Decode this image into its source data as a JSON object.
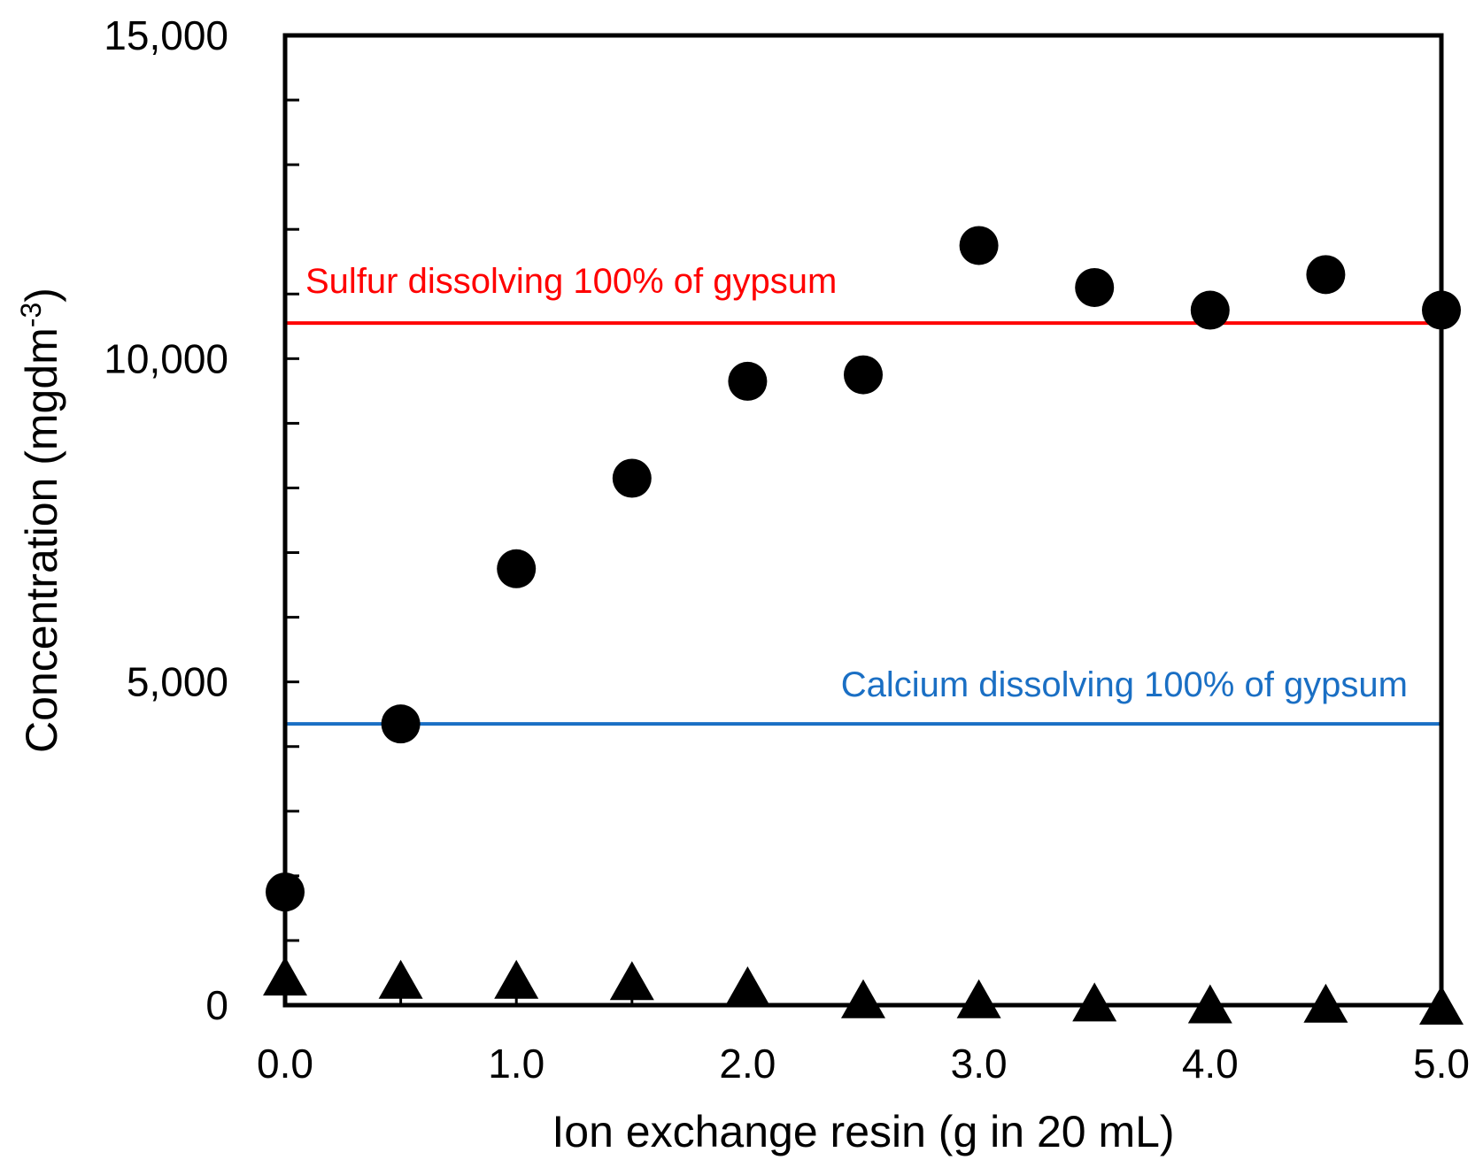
{
  "chart_data": {
    "type": "scatter",
    "xlabel": "Ion exchange resin (g in 20 mL)",
    "ylabel": "Concentration (mgdm",
    "ylabel_superscript": "-3",
    "ylabel_close": ")",
    "xlim": [
      0,
      5
    ],
    "ylim": [
      0,
      15000
    ],
    "x_ticks": [
      0,
      0.5,
      1,
      1.5,
      2,
      2.5,
      3,
      3.5,
      4,
      4.5,
      5
    ],
    "x_tick_labels": [
      "0.0",
      "1.0",
      "2.0",
      "3.0",
      "4.0",
      "5.0"
    ],
    "x_tick_label_values": [
      0,
      1,
      2,
      3,
      4,
      5
    ],
    "y_ticks": [
      0,
      1000,
      2000,
      3000,
      4000,
      5000,
      6000,
      7000,
      8000,
      9000,
      10000,
      11000,
      12000,
      13000,
      14000,
      15000
    ],
    "y_tick_labels": [
      "0",
      "5,000",
      "10,000",
      "15,000"
    ],
    "y_tick_label_values": [
      0,
      5000,
      10000,
      15000
    ],
    "grid": false,
    "series": [
      {
        "name": "Sulfur",
        "marker": "circle",
        "color": "#000000",
        "x": [
          0,
          0.5,
          1,
          1.5,
          2,
          2.5,
          3,
          3.5,
          4,
          4.5,
          5
        ],
        "values": [
          1750,
          4350,
          6750,
          8150,
          9650,
          9750,
          11750,
          11100,
          10750,
          11300,
          10750
        ]
      },
      {
        "name": "Calcium",
        "marker": "triangle",
        "color": "#000000",
        "x": [
          0,
          0.5,
          1,
          1.5,
          2,
          2.5,
          3,
          3.5,
          4,
          4.5,
          5
        ],
        "values": [
          450,
          400,
          400,
          380,
          300,
          100,
          100,
          50,
          20,
          30,
          0
        ]
      }
    ],
    "reference_lines": [
      {
        "name": "sulfur-100",
        "value": 10550,
        "color": "#ff0000",
        "label": "Sulfur dissolving 100% of gypsum"
      },
      {
        "name": "calcium-100",
        "value": 4350,
        "color": "#1a6fc4",
        "label": "Calcium dissolving 100% of gypsum"
      }
    ]
  }
}
